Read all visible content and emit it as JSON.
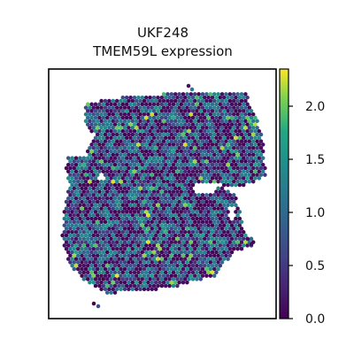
{
  "chart_data": {
    "type": "scatter",
    "title_lines": [
      "UKF248",
      "TMEM59L expression"
    ],
    "xlabel": "",
    "ylabel": "",
    "grid": false,
    "colormap": "viridis",
    "colorbar": {
      "range": [
        0.0,
        2.35
      ],
      "ticks": [
        0.0,
        0.5,
        1.0,
        1.5,
        2.0
      ],
      "tick_labels": [
        "0.0",
        "0.5",
        "1.0",
        "1.5",
        "2.0"
      ]
    },
    "spot_grid": "hexagonal spatial-transcriptomics spots forming an irregular tissue section; each spot colored by expression value"
  }
}
